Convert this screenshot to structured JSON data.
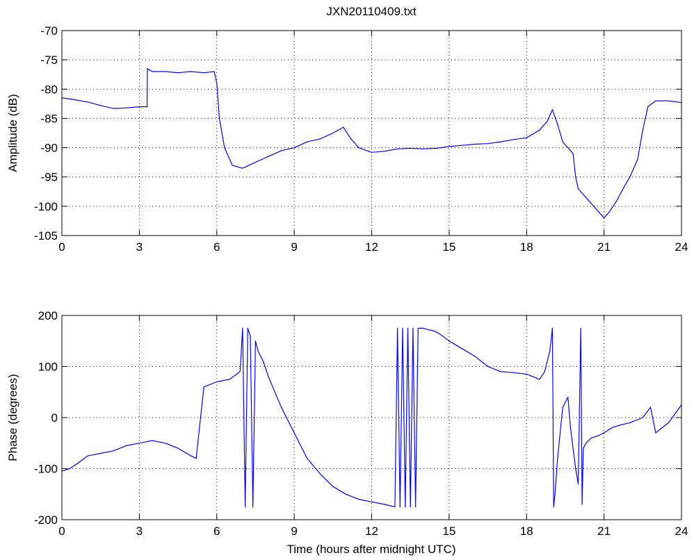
{
  "figure": {
    "title": "JXN20110409.txt"
  },
  "chart_data": [
    {
      "type": "line",
      "title": "JXN20110409.txt",
      "xlabel": "",
      "ylabel": "Amplitude (dB)",
      "xlim": [
        0,
        24
      ],
      "ylim": [
        -105,
        -70
      ],
      "xticks": [
        0,
        3,
        6,
        9,
        12,
        15,
        18,
        21,
        24
      ],
      "yticks": [
        -70,
        -75,
        -80,
        -85,
        -90,
        -95,
        -100,
        -105
      ],
      "grid": true,
      "series": [
        {
          "color": "#0000ff",
          "x": [
            0,
            0.5,
            1,
            1.5,
            2,
            2.5,
            3,
            3.3,
            3.31,
            3.5,
            4,
            4.5,
            5,
            5.5,
            5.9,
            6.0,
            6.1,
            6.3,
            6.6,
            7,
            7.5,
            8,
            8.5,
            9,
            9.5,
            10,
            10.5,
            10.9,
            11.2,
            11.5,
            12,
            12.5,
            13,
            13.5,
            14,
            14.5,
            15,
            15.5,
            16,
            16.5,
            17,
            17.5,
            18,
            18.5,
            18.8,
            19.0,
            19.2,
            19.4,
            19.6,
            19.8,
            19.9,
            20.0,
            20.3,
            20.6,
            20.9,
            21.0,
            21.2,
            21.5,
            21.8,
            22.0,
            22.3,
            22.5,
            22.7,
            23.0,
            23.5,
            24
          ],
          "y": [
            -81.5,
            -81.8,
            -82.2,
            -82.8,
            -83.3,
            -83.2,
            -83.0,
            -83.0,
            -76.5,
            -77,
            -77,
            -77.2,
            -77,
            -77.2,
            -77,
            -79,
            -85,
            -90,
            -93,
            -93.5,
            -92.5,
            -91.5,
            -90.5,
            -90,
            -89,
            -88.5,
            -87.5,
            -86.5,
            -88.5,
            -90,
            -90.8,
            -90.6,
            -90.2,
            -90.1,
            -90.2,
            -90.1,
            -89.8,
            -89.6,
            -89.4,
            -89.3,
            -89,
            -88.6,
            -88.3,
            -87,
            -85.5,
            -83.5,
            -86,
            -89,
            -90,
            -91,
            -95,
            -97,
            -98.5,
            -100,
            -101.5,
            -102,
            -101,
            -99,
            -96.5,
            -95,
            -92,
            -87,
            -83,
            -82,
            -82,
            -82.3
          ]
        }
      ]
    },
    {
      "type": "line",
      "xlabel": "Time (hours after midnight UTC)",
      "ylabel": "Phase (degrees)",
      "xlim": [
        0,
        24
      ],
      "ylim": [
        -200,
        200
      ],
      "xticks": [
        0,
        3,
        6,
        9,
        12,
        15,
        18,
        21,
        24
      ],
      "yticks": [
        200,
        100,
        0,
        -100,
        -200
      ],
      "grid": true,
      "series": [
        {
          "color": "#0000ff",
          "x": [
            0,
            0.3,
            0.6,
            1,
            1.5,
            2,
            2.5,
            3,
            3.5,
            4,
            4.5,
            5,
            5.2,
            5.35,
            5.5,
            6,
            6.5,
            6.9,
            7.0,
            7.1,
            7.2,
            7.3,
            7.4,
            7.5,
            7.6,
            7.8,
            8,
            8.5,
            9,
            9.5,
            10,
            10.5,
            11,
            11.5,
            12,
            12.5,
            12.9,
            13.0,
            13.1,
            13.2,
            13.3,
            13.4,
            13.5,
            13.6,
            13.7,
            13.8,
            13.9,
            14.0,
            14.2,
            14.4,
            14.6,
            15,
            15.5,
            16,
            16.5,
            17,
            17.5,
            18,
            18.5,
            18.7,
            18.9,
            19.0,
            19.05,
            19.1,
            19.2,
            19.4,
            19.6,
            19.7,
            19.8,
            19.9,
            20.0,
            20.1,
            20.15,
            20.2,
            20.3,
            20.5,
            20.8,
            21,
            21.3,
            21.6,
            22,
            22.5,
            22.8,
            23,
            23.5,
            24
          ],
          "y": [
            -105,
            -100,
            -90,
            -75,
            -70,
            -65,
            -55,
            -50,
            -45,
            -50,
            -60,
            -75,
            -80,
            -10,
            60,
            70,
            75,
            90,
            175,
            -175,
            175,
            160,
            -175,
            150,
            130,
            110,
            80,
            20,
            -30,
            -80,
            -110,
            -135,
            -150,
            -160,
            -165,
            -170,
            -175,
            175,
            -175,
            175,
            -175,
            175,
            -175,
            175,
            -175,
            175,
            175,
            175,
            172,
            170,
            165,
            150,
            135,
            120,
            100,
            90,
            88,
            85,
            75,
            90,
            130,
            175,
            -175,
            -150,
            -80,
            20,
            40,
            -20,
            -60,
            -100,
            -130,
            175,
            -170,
            -60,
            -50,
            -40,
            -35,
            -30,
            -20,
            -15,
            -10,
            0,
            20,
            -30,
            -10,
            25
          ]
        }
      ]
    }
  ]
}
